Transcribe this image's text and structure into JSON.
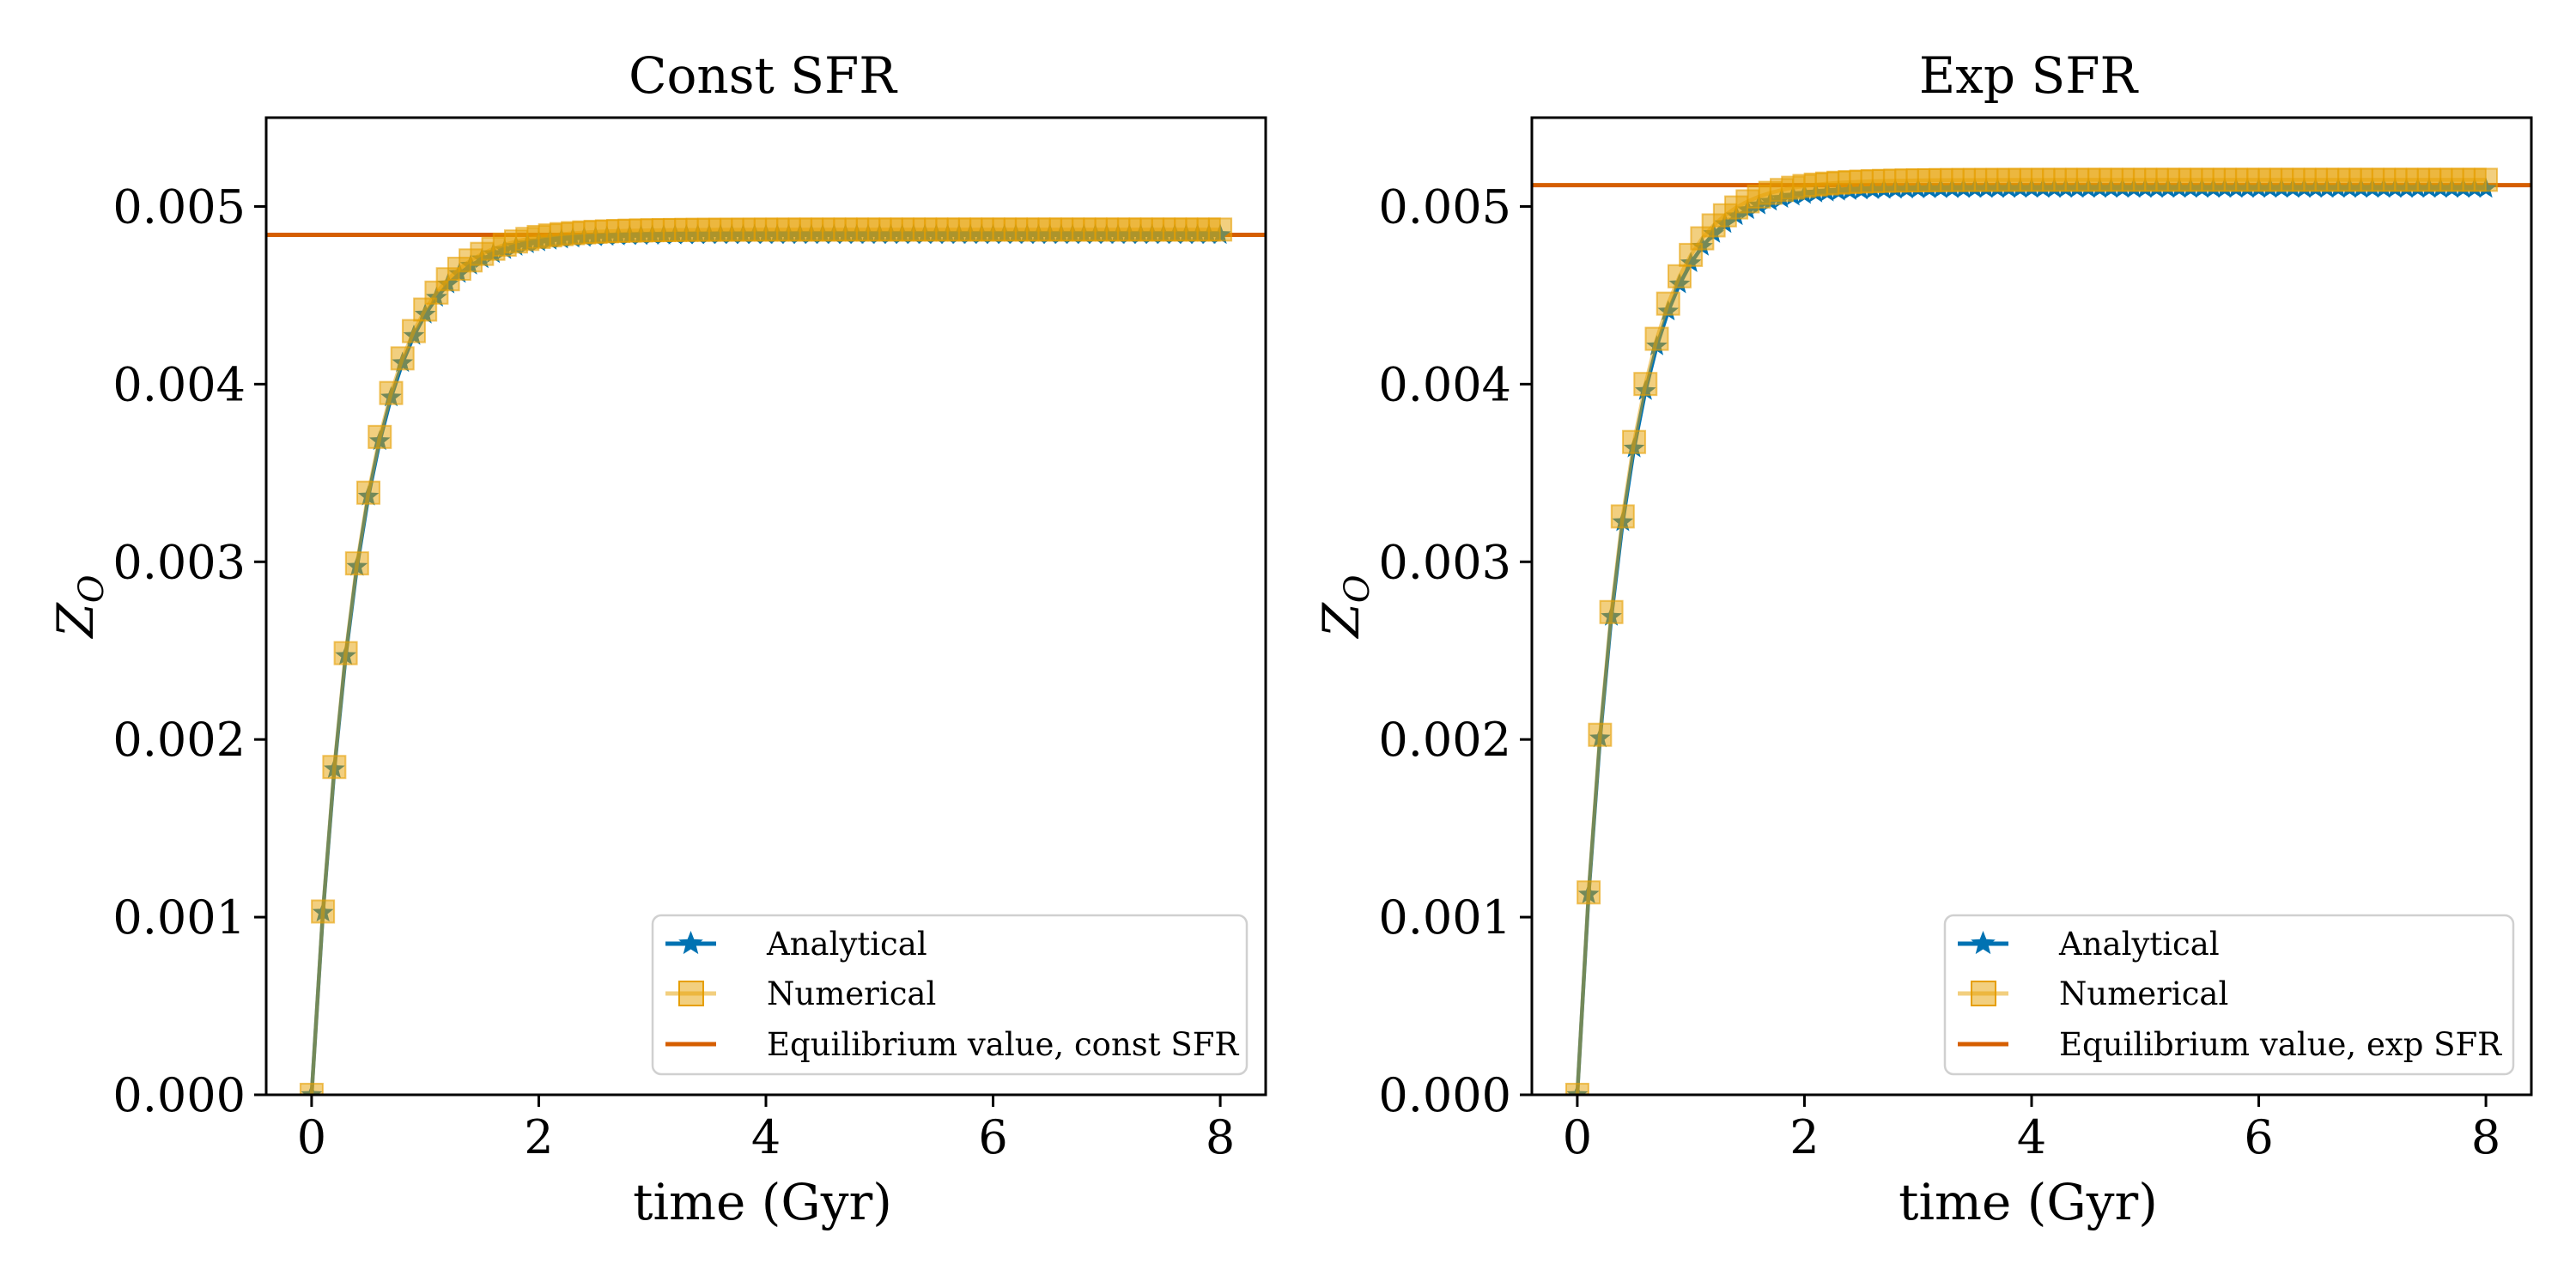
{
  "colors": {
    "analytical": "#0072b2",
    "numerical": "#e69f00",
    "equilibrium": "#d55e00",
    "overlap_line": "#6b8a5a"
  },
  "chart_data": [
    {
      "type": "line",
      "title": "Const SFR",
      "xlabel": "time (Gyr)",
      "ylabel": "Z_O",
      "ylabel_symbol": "Z",
      "ylabel_subscript": "O",
      "xlim": [
        -0.4,
        8.4
      ],
      "ylim": [
        0.0,
        0.0055
      ],
      "xticks": [
        0,
        2,
        4,
        6,
        8
      ],
      "xtick_labels": [
        "0",
        "2",
        "4",
        "6",
        "8"
      ],
      "yticks": [
        0.0,
        0.001,
        0.002,
        0.003,
        0.004,
        0.005
      ],
      "ytick_labels": [
        "0.000",
        "0.001",
        "0.002",
        "0.003",
        "0.004",
        "0.005"
      ],
      "legend_location": "lower-right",
      "series": [
        {
          "name": "Analytical",
          "marker": "star",
          "model": "exp",
          "equilibrium": 0.00484,
          "timescale_gyr": 0.42,
          "t_start": 0.0,
          "t_end": 8.0,
          "n_points": 81
        },
        {
          "name": "Numerical",
          "marker": "square",
          "model": "exp",
          "equilibrium": 0.00487,
          "timescale_gyr": 0.42,
          "t_start": 0.0,
          "t_end": 8.0,
          "n_points": 81
        },
        {
          "name": "Equilibrium value, const SFR",
          "marker": "none",
          "model": "hline",
          "value": 0.00484
        }
      ]
    },
    {
      "type": "line",
      "title": "Exp SFR",
      "xlabel": "time (Gyr)",
      "ylabel": "Z_O",
      "ylabel_symbol": "Z",
      "ylabel_subscript": "O",
      "xlim": [
        -0.4,
        8.4
      ],
      "ylim": [
        0.0,
        0.0055
      ],
      "xticks": [
        0,
        2,
        4,
        6,
        8
      ],
      "xtick_labels": [
        "0",
        "2",
        "4",
        "6",
        "8"
      ],
      "yticks": [
        0.0,
        0.001,
        0.002,
        0.003,
        0.004,
        0.005
      ],
      "ytick_labels": [
        "0.000",
        "0.001",
        "0.002",
        "0.003",
        "0.004",
        "0.005"
      ],
      "legend_location": "lower-right",
      "series": [
        {
          "name": "Analytical",
          "marker": "star",
          "model": "exp",
          "equilibrium": 0.0051,
          "timescale_gyr": 0.4,
          "t_start": 0.0,
          "t_end": 8.0,
          "n_points": 81
        },
        {
          "name": "Numerical",
          "marker": "square",
          "model": "exp",
          "equilibrium": 0.00515,
          "timescale_gyr": 0.4,
          "t_start": 0.0,
          "t_end": 8.0,
          "n_points": 81
        },
        {
          "name": "Equilibrium value, exp SFR",
          "marker": "none",
          "model": "hline",
          "value": 0.00512
        }
      ]
    }
  ]
}
